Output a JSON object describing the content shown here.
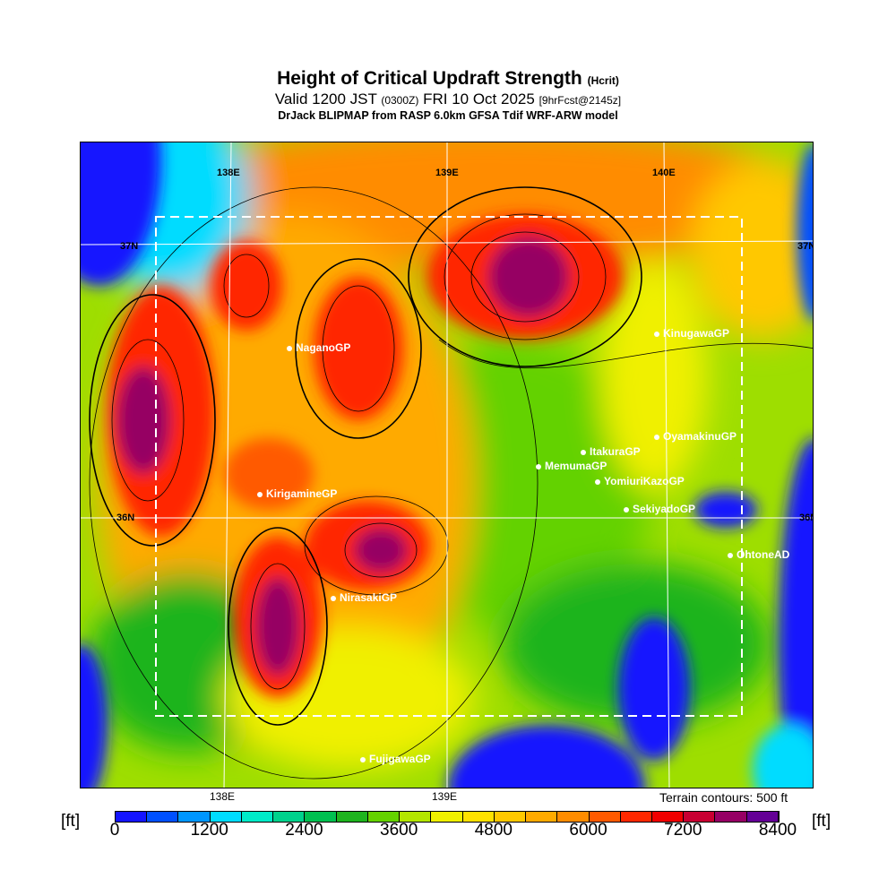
{
  "title": {
    "main": "Height of Critical Updraft Strength",
    "main_suffix": "(Hcrit)",
    "valid": "Valid 1200 JST",
    "valid_z": "(0300Z)",
    "valid_date": "FRI 10 Oct 2025",
    "fcst": "[9hrFcst@2145z]",
    "source": "DrJack BLIPMAP from RASP 6.0km GFSA Tdif WRF-ARW model"
  },
  "axes": {
    "lon_top": [
      "138E",
      "139E",
      "140E"
    ],
    "lon_bottom": [
      "138E",
      "139E"
    ],
    "lat_left": [
      "37N",
      "36N"
    ],
    "lat_right": [
      "37N",
      "36N"
    ]
  },
  "sites": [
    "NaganoGP",
    "KinugawaGP",
    "OyamakinuGP",
    "ItakuraGP",
    "MemumaGP",
    "YomiuriKazoGP",
    "SekiyadoGP",
    "OhtoneAD",
    "KirigamineGP",
    "NirasakiGP",
    "FujigawaGP"
  ],
  "terrain_note": "Terrain contours: 500 ft",
  "colorbar": {
    "unit": "[ft]",
    "ticks": [
      "0",
      "1200",
      "2400",
      "3600",
      "4800",
      "6000",
      "7200",
      "8400"
    ],
    "colors": [
      "#1414ff",
      "#0050ff",
      "#0096ff",
      "#00dcff",
      "#00ebc8",
      "#00d28c",
      "#00c050",
      "#1eb41e",
      "#64d200",
      "#b4e600",
      "#f0f000",
      "#ffe100",
      "#ffc800",
      "#ffaa00",
      "#ff8c00",
      "#ff5a00",
      "#ff2800",
      "#f00000",
      "#c80032",
      "#960064",
      "#640096"
    ]
  }
}
